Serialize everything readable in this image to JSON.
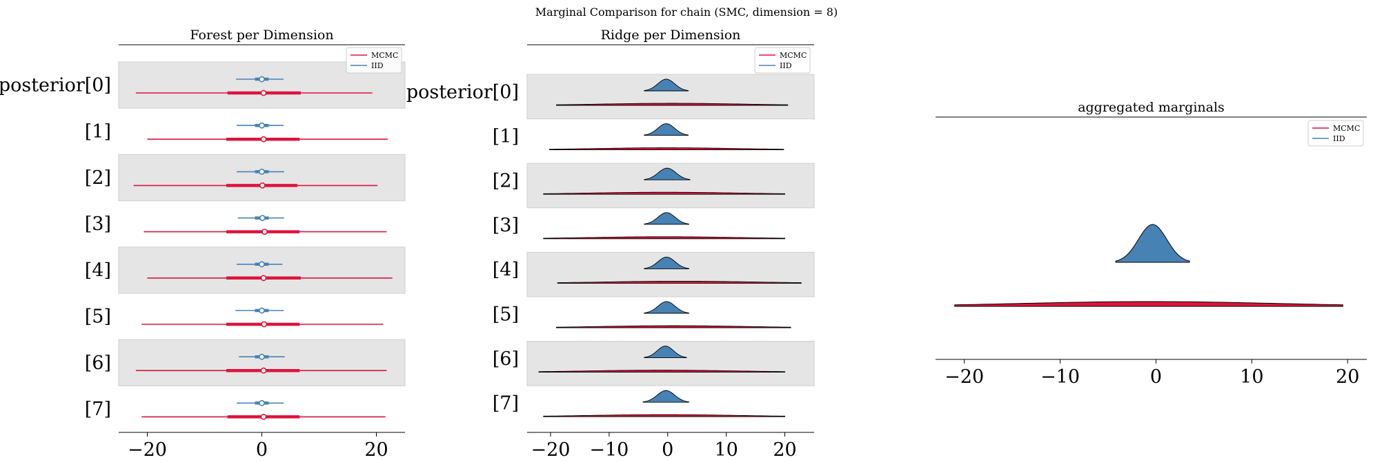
{
  "figure": {
    "suptitle": "Marginal Comparison for chain (SMC, dimension = 8)"
  },
  "colors": {
    "mcmc": "#dc143c",
    "iid": "#4682b4",
    "band": "#e5e5e5",
    "band_edge": "#cfcfcf",
    "axis": "#000000"
  },
  "legend": {
    "items": [
      {
        "label": "MCMC",
        "color": "#dc143c"
      },
      {
        "label": "IID",
        "color": "#4682b4"
      }
    ]
  },
  "chart_data": [
    {
      "type": "forest",
      "title": "Forest per Dimension",
      "xlim": [
        -25,
        25
      ],
      "xticks": [
        -20,
        0,
        20
      ],
      "xtick_labels": [
        "−20",
        "0",
        "20"
      ],
      "row_labels": [
        "posterior[0]",
        "[1]",
        "[2]",
        "[3]",
        "[4]",
        "[5]",
        "[6]",
        "[7]"
      ],
      "banded_rows": [
        0,
        2,
        4,
        6
      ],
      "legend_position": "top-right",
      "series": [
        {
          "name": "MCMC",
          "intervals": [
            {
              "low": -22.0,
              "q25": -6.0,
              "median": 0.3,
              "q75": 6.8,
              "high": 19.3
            },
            {
              "low": -20.0,
              "q25": -6.2,
              "median": 0.3,
              "q75": 6.6,
              "high": 22.0
            },
            {
              "low": -22.4,
              "q25": -6.2,
              "median": 0.1,
              "q75": 6.2,
              "high": 20.2
            },
            {
              "low": -20.6,
              "q25": -6.2,
              "median": 0.5,
              "q75": 6.6,
              "high": 21.8
            },
            {
              "low": -20.0,
              "q25": -6.2,
              "median": 0.3,
              "q75": 6.8,
              "high": 22.8
            },
            {
              "low": -21.0,
              "q25": -6.2,
              "median": 0.4,
              "q75": 6.6,
              "high": 21.2
            },
            {
              "low": -22.0,
              "q25": -6.2,
              "median": 0.3,
              "q75": 6.6,
              "high": 21.8
            },
            {
              "low": -21.0,
              "q25": -6.0,
              "median": 0.3,
              "q75": 6.6,
              "high": 21.6
            }
          ]
        },
        {
          "name": "IID",
          "intervals": [
            {
              "low": -4.5,
              "q25": -1.2,
              "median": 0.0,
              "q75": 1.2,
              "high": 3.8
            },
            {
              "low": -4.4,
              "q25": -1.2,
              "median": 0.0,
              "q75": 1.2,
              "high": 3.8
            },
            {
              "low": -4.4,
              "q25": -1.2,
              "median": 0.0,
              "q75": 1.2,
              "high": 3.9
            },
            {
              "low": -4.2,
              "q25": -1.2,
              "median": 0.1,
              "q75": 1.2,
              "high": 3.9
            },
            {
              "low": -4.4,
              "q25": -1.2,
              "median": 0.0,
              "q75": 1.2,
              "high": 3.6
            },
            {
              "low": -4.6,
              "q25": -1.2,
              "median": 0.0,
              "q75": 1.2,
              "high": 3.8
            },
            {
              "low": -4.0,
              "q25": -1.2,
              "median": 0.0,
              "q75": 1.2,
              "high": 4.0
            },
            {
              "low": -4.4,
              "q25": -1.2,
              "median": 0.0,
              "q75": 1.2,
              "high": 3.8
            }
          ]
        }
      ]
    },
    {
      "type": "ridge",
      "title": "Ridge per Dimension",
      "xlim": [
        -24,
        25
      ],
      "xticks": [
        -20,
        -10,
        0,
        10,
        20
      ],
      "xtick_labels": [
        "−20",
        "−10",
        "0",
        "10",
        "20"
      ],
      "row_labels": [
        "posterior[0]",
        "[1]",
        "[2]",
        "[3]",
        "[4]",
        "[5]",
        "[6]",
        "[7]"
      ],
      "banded_rows": [
        0,
        2,
        4,
        6
      ],
      "legend_position": "top-right",
      "series": [
        {
          "name": "MCMC",
          "ranges": [
            [
              -19.0,
              20.5
            ],
            [
              -20.2,
              19.8
            ],
            [
              -21.2,
              20.0
            ],
            [
              -21.2,
              20.0
            ],
            [
              -18.8,
              22.8
            ],
            [
              -19.0,
              21.0
            ],
            [
              -22.0,
              20.0
            ],
            [
              -21.2,
              20.0
            ]
          ]
        },
        {
          "name": "IID",
          "ranges": [
            [
              -4.0,
              3.5
            ],
            [
              -4.0,
              3.5
            ],
            [
              -4.0,
              3.8
            ],
            [
              -4.0,
              3.6
            ],
            [
              -4.0,
              3.6
            ],
            [
              -4.0,
              3.6
            ],
            [
              -4.0,
              3.2
            ],
            [
              -4.2,
              3.6
            ]
          ]
        }
      ]
    },
    {
      "type": "ridge",
      "title": "aggregated marginals",
      "xlim": [
        -23,
        22
      ],
      "xticks": [
        -20,
        -10,
        0,
        10,
        20
      ],
      "xtick_labels": [
        "−20",
        "−10",
        "0",
        "10",
        "20"
      ],
      "legend_position": "top-right",
      "series": [
        {
          "name": "IID",
          "range": [
            -4.2,
            3.5
          ]
        },
        {
          "name": "MCMC",
          "range": [
            -21.0,
            19.5
          ]
        }
      ]
    }
  ]
}
